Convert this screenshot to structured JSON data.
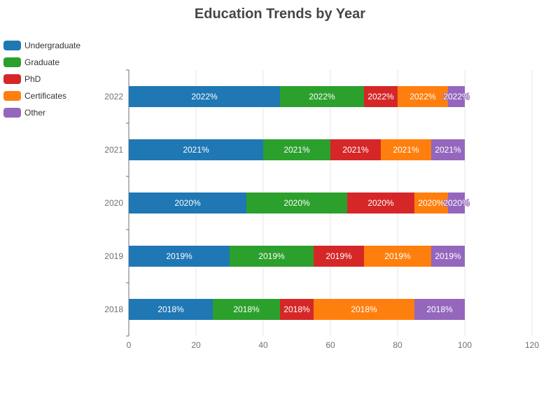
{
  "chart_data": {
    "type": "bar",
    "orientation": "horizontal",
    "stacked": true,
    "title": "Education Trends by Year",
    "xlabel": "",
    "ylabel": "",
    "xlim": [
      0,
      120
    ],
    "x_ticks": [
      "0",
      "20",
      "40",
      "60",
      "80",
      "100",
      "120"
    ],
    "categories": [
      "2022",
      "2021",
      "2020",
      "2019",
      "2018"
    ],
    "series": [
      {
        "name": "Undergraduate",
        "color": "#1f77b4",
        "values": [
          45,
          40,
          35,
          30,
          25
        ],
        "labels": [
          "2022%",
          "2021%",
          "2020%",
          "2019%",
          "2018%"
        ]
      },
      {
        "name": "Graduate",
        "color": "#2ca02c",
        "values": [
          25,
          20,
          30,
          25,
          20
        ],
        "labels": [
          "2022%",
          "2021%",
          "2020%",
          "2019%",
          "2018%"
        ]
      },
      {
        "name": "PhD",
        "color": "#d62728",
        "values": [
          10,
          15,
          20,
          15,
          10
        ],
        "labels": [
          "2022%",
          "2021%",
          "2020%",
          "2019%",
          "2018%"
        ]
      },
      {
        "name": "Certificates",
        "color": "#ff7f0e",
        "values": [
          15,
          15,
          10,
          20,
          30
        ],
        "labels": [
          "2022%",
          "2021%",
          "2020%",
          "2019%",
          "2018%"
        ]
      },
      {
        "name": "Other",
        "color": "#9467bd",
        "values": [
          5,
          10,
          5,
          10,
          15
        ],
        "labels": [
          "2022%",
          "2021%",
          "2020%",
          "2019%",
          "2018%"
        ]
      }
    ],
    "grid": true,
    "legend_position": "top-left"
  }
}
